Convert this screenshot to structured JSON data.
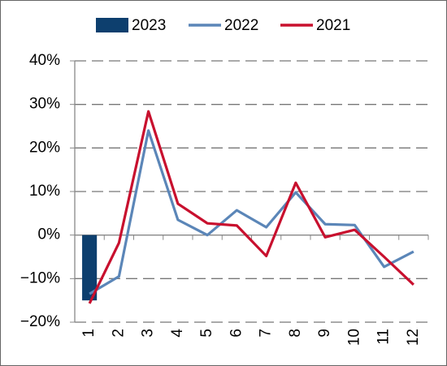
{
  "chart_data": {
    "type": "combo",
    "categories": [
      "1",
      "2",
      "3",
      "4",
      "5",
      "6",
      "7",
      "8",
      "9",
      "10",
      "11",
      "12"
    ],
    "series": [
      {
        "name": "2023",
        "type": "bar",
        "color": "#0d3f6e",
        "values": [
          -15,
          null,
          null,
          null,
          null,
          null,
          null,
          null,
          null,
          null,
          null,
          null
        ]
      },
      {
        "name": "2022",
        "type": "line",
        "color": "#5b86b8",
        "values": [
          -13.5,
          -9.5,
          24,
          3.5,
          0,
          5.7,
          1.8,
          9.8,
          2.5,
          2.3,
          -7.3,
          -3.8
        ]
      },
      {
        "name": "2021",
        "type": "line",
        "color": "#c8102e",
        "values": [
          -15.7,
          -1.8,
          28.4,
          7.2,
          2.7,
          2.2,
          -4.8,
          12,
          -0.5,
          1.2,
          -5,
          -11.4
        ]
      }
    ],
    "ylim": [
      -20,
      40
    ],
    "yticks": [
      {
        "value": -20,
        "label": "−20%"
      },
      {
        "value": -10,
        "label": "−10%"
      },
      {
        "value": 0,
        "label": "0%"
      },
      {
        "value": 10,
        "label": "10%"
      },
      {
        "value": 20,
        "label": "20%"
      },
      {
        "value": 30,
        "label": "30%"
      },
      {
        "value": 40,
        "label": "40%"
      }
    ],
    "grid": true,
    "legend": "top"
  }
}
